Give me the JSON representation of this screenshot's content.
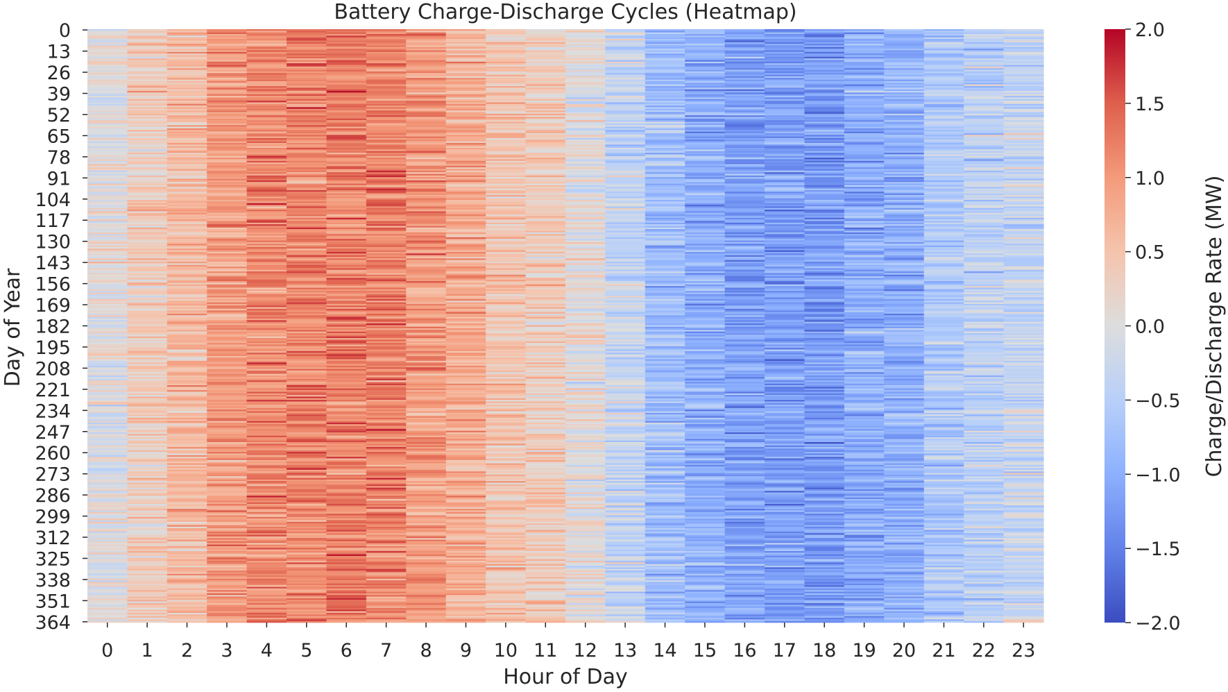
{
  "chart_data": {
    "type": "heatmap",
    "title": "Battery Charge-Discharge Cycles (Heatmap)",
    "xlabel": "Hour of Day",
    "ylabel": "Day of Year",
    "x_ticks": [
      "0",
      "1",
      "2",
      "3",
      "4",
      "5",
      "6",
      "7",
      "8",
      "9",
      "10",
      "11",
      "12",
      "13",
      "14",
      "15",
      "16",
      "17",
      "18",
      "19",
      "20",
      "21",
      "22",
      "23"
    ],
    "y_ticks": [
      "0",
      "13",
      "26",
      "39",
      "52",
      "65",
      "78",
      "91",
      "104",
      "117",
      "130",
      "143",
      "156",
      "169",
      "182",
      "195",
      "208",
      "221",
      "234",
      "247",
      "260",
      "273",
      "286",
      "299",
      "312",
      "325",
      "338",
      "351",
      "364"
    ],
    "rows": 365,
    "columns": 24,
    "hourly_mean_rate_mw": [
      0.0,
      0.35,
      0.6,
      0.95,
      1.15,
      1.15,
      1.2,
      1.2,
      1.0,
      0.75,
      0.5,
      0.35,
      0.05,
      -0.35,
      -0.75,
      -1.0,
      -1.15,
      -1.15,
      -1.2,
      -1.0,
      -1.0,
      -0.6,
      -0.45,
      -0.3
    ],
    "colorbar": {
      "label": "Charge/Discharge Rate (MW)",
      "range": [
        -2.0,
        2.0
      ],
      "ticks": [
        "2.0",
        "1.5",
        "1.0",
        "0.5",
        "0.0",
        "−0.5",
        "−1.0",
        "−1.5",
        "−2.0"
      ],
      "tick_values": [
        2.0,
        1.5,
        1.0,
        0.5,
        0.0,
        -0.5,
        -1.0,
        -1.5,
        -2.0
      ],
      "colormap": "coolwarm",
      "color_low": "#3b4cc0",
      "color_mid": "#dddddd",
      "color_high": "#b40426"
    }
  }
}
